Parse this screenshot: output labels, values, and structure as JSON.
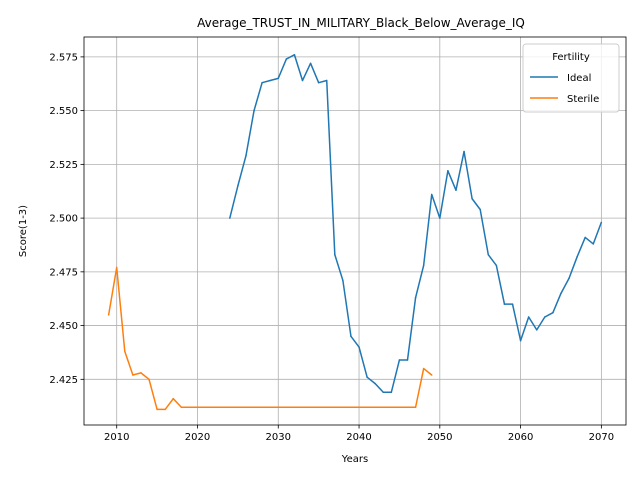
{
  "chart_data": {
    "type": "line",
    "title": "Average_TRUST_IN_MILITARY_Black_Below_Average_IQ",
    "xlabel": "Years",
    "ylabel": "Score(1-3)",
    "xlim": [
      2005.95,
      2073.05
    ],
    "ylim": [
      2.40375,
      2.58425
    ],
    "xticks": [
      2010,
      2020,
      2030,
      2040,
      2050,
      2060,
      2070
    ],
    "yticks": [
      2.425,
      2.45,
      2.475,
      2.5,
      2.525,
      2.55,
      2.575
    ],
    "ytick_labels": [
      "2.425",
      "2.450",
      "2.475",
      "2.500",
      "2.525",
      "2.550",
      "2.575"
    ],
    "grid": true,
    "legend": {
      "title": "Fertility",
      "position": "top-right"
    },
    "series": [
      {
        "name": "Ideal",
        "color": "#1f77b4",
        "x": [
          2024,
          2025,
          2026,
          2027,
          2028,
          2029,
          2030,
          2031,
          2032,
          2033,
          2034,
          2035,
          2036,
          2037,
          2038,
          2039,
          2040,
          2041,
          2042,
          2043,
          2044,
          2045,
          2046,
          2047,
          2048,
          2049,
          2050,
          2051,
          2052,
          2053,
          2054,
          2055,
          2056,
          2057,
          2058,
          2059,
          2060,
          2061,
          2062,
          2063,
          2064,
          2065,
          2066,
          2067,
          2068,
          2069,
          2070
        ],
        "y": [
          2.5,
          2.515,
          2.529,
          2.55,
          2.563,
          2.564,
          2.565,
          2.574,
          2.576,
          2.564,
          2.572,
          2.563,
          2.564,
          2.483,
          2.471,
          2.445,
          2.44,
          2.426,
          2.423,
          2.419,
          2.419,
          2.434,
          2.434,
          2.463,
          2.478,
          2.511,
          2.5,
          2.522,
          2.513,
          2.531,
          2.509,
          2.504,
          2.483,
          2.478,
          2.46,
          2.46,
          2.443,
          2.454,
          2.448,
          2.454,
          2.456,
          2.465,
          2.472,
          2.482,
          2.491,
          2.488,
          2.498
        ]
      },
      {
        "name": "Sterile",
        "color": "#ff7f0e",
        "x": [
          2009,
          2010,
          2011,
          2012,
          2013,
          2014,
          2015,
          2016,
          2017,
          2018,
          2019,
          2020,
          2021,
          2022,
          2023,
          2024,
          2025,
          2026,
          2027,
          2028,
          2029,
          2030,
          2031,
          2032,
          2033,
          2034,
          2035,
          2036,
          2037,
          2038,
          2039,
          2040,
          2041,
          2042,
          2043,
          2044,
          2045,
          2046,
          2047,
          2048,
          2049
        ],
        "y": [
          2.455,
          2.477,
          2.438,
          2.427,
          2.428,
          2.425,
          2.411,
          2.411,
          2.416,
          2.412,
          2.412,
          2.412,
          2.412,
          2.412,
          2.412,
          2.412,
          2.412,
          2.412,
          2.412,
          2.412,
          2.412,
          2.412,
          2.412,
          2.412,
          2.412,
          2.412,
          2.412,
          2.412,
          2.412,
          2.412,
          2.412,
          2.412,
          2.412,
          2.412,
          2.412,
          2.412,
          2.412,
          2.412,
          2.412,
          2.43,
          2.427
        ]
      }
    ]
  }
}
